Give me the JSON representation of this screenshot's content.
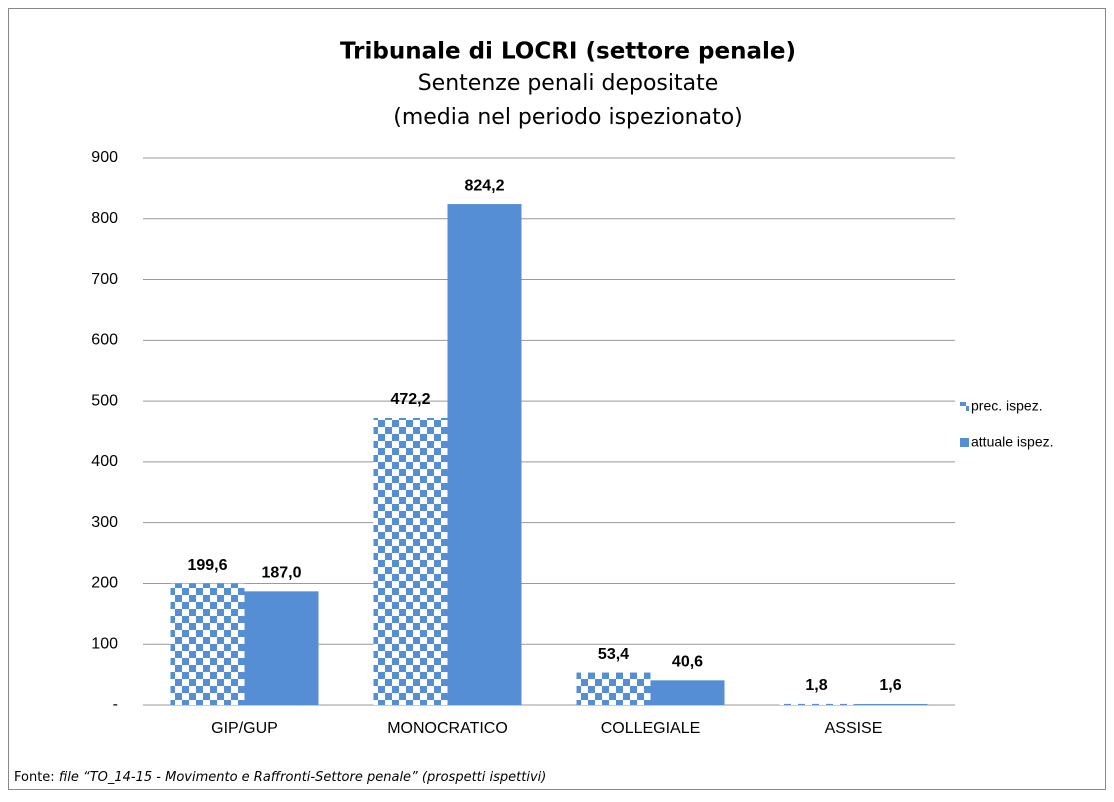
{
  "chart_data": {
    "type": "bar",
    "title": "Tribunale di LOCRI (settore penale)",
    "subtitle": "Sentenze penali depositate",
    "subtitle2": "(media nel periodo ispezionato)",
    "categories": [
      "GIP/GUP",
      "MONOCRATICO",
      "COLLEGIALE",
      "ASSISE"
    ],
    "series": [
      {
        "name": "prec. ispez.",
        "color": "#558ed5",
        "pattern": "checker",
        "values": [
          199.6,
          472.2,
          53.4,
          1.8
        ],
        "value_labels": [
          "199,6",
          "472,2",
          "53,4",
          "1,8"
        ]
      },
      {
        "name": "attuale ispez.",
        "color": "#558ed5",
        "values": [
          187.0,
          824.2,
          40.6,
          1.6
        ],
        "value_labels": [
          "187,0",
          "824,2",
          "40,6",
          "1,6"
        ]
      }
    ],
    "ylim": [
      0,
      900
    ],
    "yticks": [
      {
        "value": 0,
        "label": "-"
      },
      100,
      200,
      300,
      400,
      500,
      600,
      700,
      800,
      900
    ],
    "grid": true,
    "legend": "right",
    "source_label": "Fonte:",
    "source_text": "file “TO_14-15 - Movimento e Raffronti-Settore penale” (prospetti ispettivi)"
  }
}
